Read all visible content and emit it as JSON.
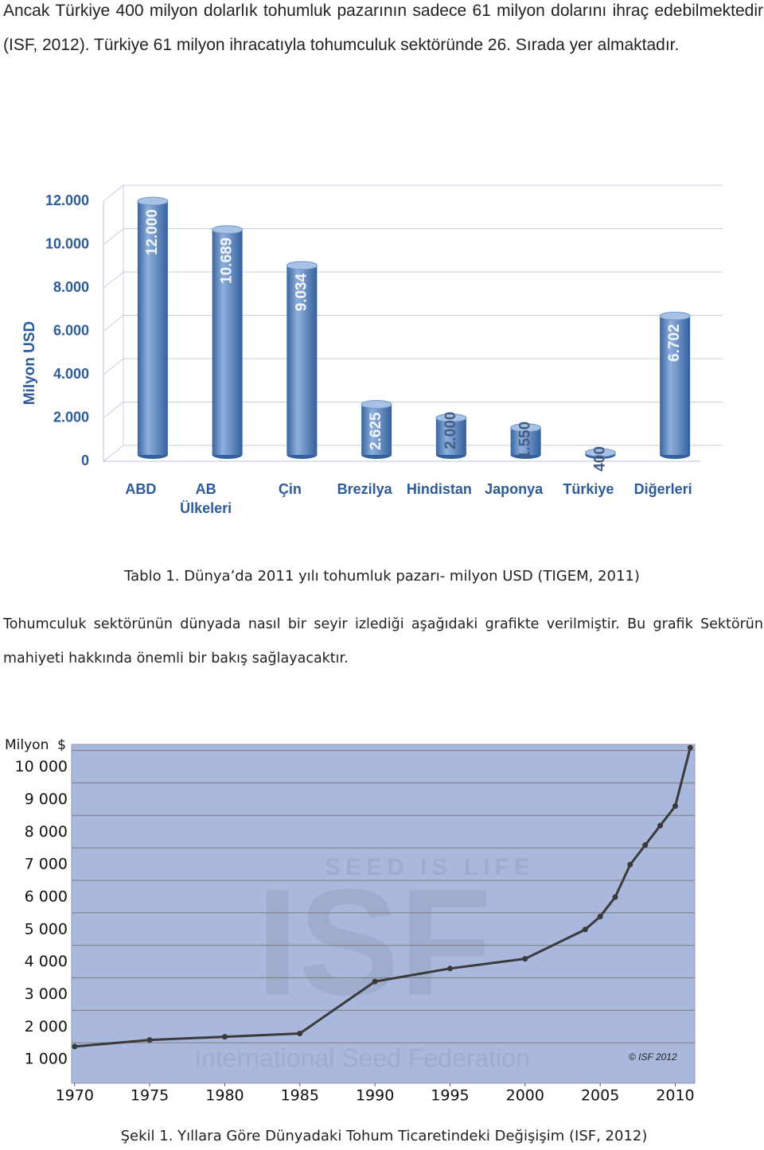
{
  "paragraphs": [
    "Ancak Türkiye 400 milyon dolarlık tohumluk pazarının sadece 61 milyon dolarını ihraç edebilmektedir (ISF, 2012). Türkiye 61 milyon ihracatıyla tohumculuk sektöründe 26. Sırada yer almaktadır.",
    "Tohumculuk sektörünün dünyada nasıl bir seyir izlediği aşağıdaki grafikte verilmiştir. Bu grafik Sektörün mahiyeti hakkında önemli bir bakış sağlayacaktır."
  ],
  "captions": [
    "Tablo 1. Dünya’da 2011 yılı tohumluk pazarı- milyon USD (TIGEM, 2011)",
    "Şekil 1.  Yıllara Göre Dünyadaki Tohum Ticaretindeki Değişişim (ISF, 2012)"
  ],
  "chart_data": [
    {
      "type": "bar",
      "y_label": "Milyon USD",
      "color": "#4f7fbd",
      "categories": [
        "ABD",
        "AB Ülkeleri",
        "Çin",
        "Brezilya",
        "Hindistan",
        "Japonya",
        "Türkiye",
        "Diğerleri"
      ],
      "values": [
        12000,
        10689,
        9034,
        2625,
        2000,
        1550,
        400,
        6702
      ],
      "value_labels": [
        "12.000",
        "10.689",
        "9.034",
        "2.625",
        "2.000",
        "1.550",
        "400",
        "6.702"
      ],
      "ylim": [
        0,
        12000
      ],
      "yticks": [
        0,
        {
          "value": 2000,
          "label": "2.000"
        },
        {
          "value": 4000,
          "label": "4.000"
        },
        {
          "value": 6000,
          "label": "6.000"
        },
        {
          "value": 8000,
          "label": "8.000"
        },
        {
          "value": 10000,
          "label": "10.000"
        },
        {
          "value": 12000,
          "label": "12.000"
        }
      ],
      "grid": true
    },
    {
      "type": "line",
      "y_label": "Milyon  $",
      "color": "#3a3a3a",
      "background": "#a9b8dc",
      "x": [
        1970,
        1975,
        1980,
        1985,
        1990,
        1995,
        2000,
        2004,
        2005,
        2006,
        2007,
        2008,
        2009,
        2010,
        2011
      ],
      "values": [
        1400,
        1600,
        1700,
        1800,
        3400,
        3800,
        4100,
        5000,
        5400,
        6000,
        7000,
        7600,
        8200,
        8800,
        10600
      ],
      "xlim": [
        1969.8,
        2011.3
      ],
      "xticks": [
        1970,
        1975,
        1980,
        1985,
        1990,
        1995,
        2000,
        2005,
        2010
      ],
      "ylim": [
        270,
        10700
      ],
      "yticks": [
        {
          "value": 1000,
          "label": "1 000"
        },
        {
          "value": 2000,
          "label": "2 000"
        },
        {
          "value": 3000,
          "label": "3 000"
        },
        {
          "value": 4000,
          "label": "4 000"
        },
        {
          "value": 5000,
          "label": "5 000"
        },
        {
          "value": 6000,
          "label": "6 000"
        },
        {
          "value": 7000,
          "label": "7 000"
        },
        {
          "value": 8000,
          "label": "8 000"
        },
        {
          "value": 9000,
          "label": "9 000"
        },
        {
          "value": 10000,
          "label": "10 000"
        }
      ],
      "grid": true,
      "watermark": [
        "SEED IS LIFE",
        "ISF",
        "International Seed Federation"
      ],
      "credit": "© ISF 2012"
    }
  ]
}
